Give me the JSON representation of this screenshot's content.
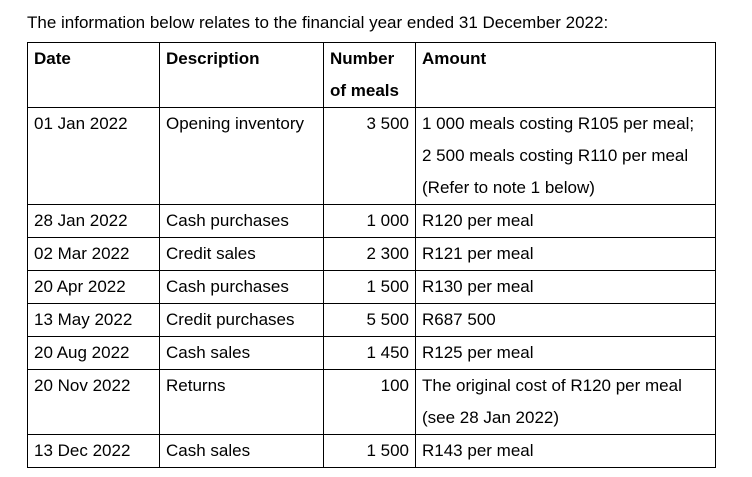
{
  "intro": "The information below relates to the financial year ended 31 December 2022:",
  "headers": {
    "date": "Date",
    "description": "Description",
    "number_line1": "Number",
    "number_line2": "of meals",
    "amount": "Amount"
  },
  "rows": [
    {
      "date": "01 Jan 2022",
      "description": "Opening inventory",
      "number": "3 500",
      "amount": [
        "1 000 meals costing R105 per meal;",
        "2 500 meals costing R110 per meal",
        "(Refer to note 1 below)"
      ]
    },
    {
      "date": "28 Jan 2022",
      "description": "Cash purchases",
      "number": "1 000",
      "amount": [
        "R120 per meal"
      ]
    },
    {
      "date": "02 Mar 2022",
      "description": "Credit sales",
      "number": "2 300",
      "amount": [
        "R121 per meal"
      ]
    },
    {
      "date": "20 Apr 2022",
      "description": "Cash purchases",
      "number": "1 500",
      "amount": [
        "R130 per meal"
      ]
    },
    {
      "date": "13 May 2022",
      "description": "Credit purchases",
      "number": "5 500",
      "amount": [
        "R687 500"
      ]
    },
    {
      "date": "20 Aug 2022",
      "description": "Cash sales",
      "number": "1 450",
      "amount": [
        "R125 per meal"
      ]
    },
    {
      "date": "20 Nov 2022",
      "description": "Returns",
      "number": "100",
      "amount": [
        "The original cost of R120 per meal",
        "(see 28 Jan 2022)"
      ]
    },
    {
      "date": "13 Dec 2022",
      "description": "Cash sales",
      "number": "1 500",
      "amount": [
        "R143 per meal"
      ]
    }
  ]
}
